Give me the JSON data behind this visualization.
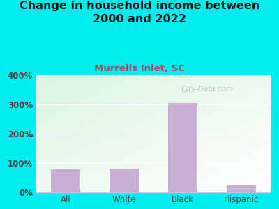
{
  "categories": [
    "All",
    "White",
    "Black",
    "Hispanic"
  ],
  "values": [
    78,
    82,
    305,
    25
  ],
  "bar_color": "#c9afd4",
  "title": "Change in household income between\n2000 and 2022",
  "subtitle": "Murrells Inlet, SC",
  "subtitle_color": "#a05050",
  "title_color": "#111111",
  "background_color": "#00eeee",
  "plot_bg_color_top_left": "#dff0e0",
  "plot_bg_color_bottom_right": "#ffffff",
  "ylim": [
    0,
    400
  ],
  "yticks": [
    0,
    100,
    200,
    300,
    400
  ],
  "ytick_labels": [
    "0%",
    "100%",
    "200%",
    "300%",
    "400%"
  ],
  "watermark": "City-Data.com",
  "watermark_color": "#b0b8c0",
  "title_fontsize": 11.5,
  "subtitle_fontsize": 9.5,
  "tick_fontsize": 8.5
}
